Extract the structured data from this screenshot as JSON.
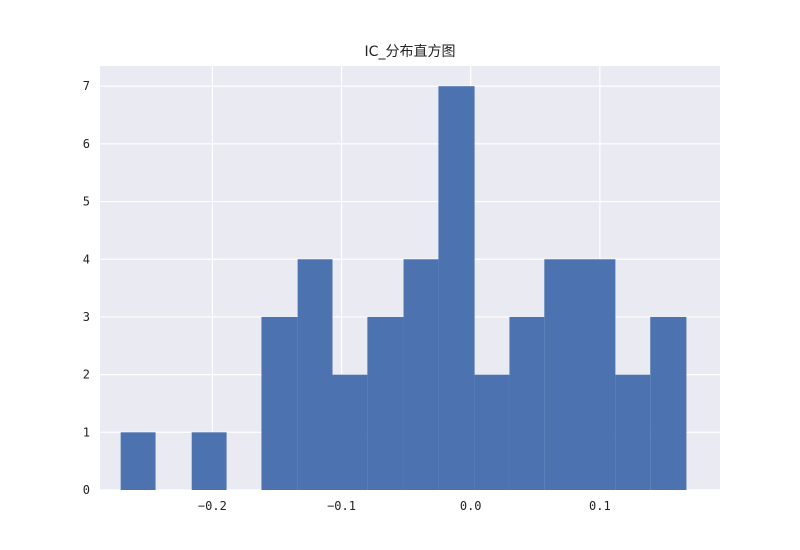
{
  "chart_data": {
    "type": "bar",
    "title": "IC_分布直方图",
    "xlabel": "",
    "ylabel": "",
    "bins": [
      {
        "x0": -0.271,
        "x1": -0.244,
        "count": 1
      },
      {
        "x0": -0.244,
        "x1": -0.216,
        "count": 0
      },
      {
        "x0": -0.216,
        "x1": -0.189,
        "count": 1
      },
      {
        "x0": -0.189,
        "x1": -0.162,
        "count": 0
      },
      {
        "x0": -0.162,
        "x1": -0.134,
        "count": 3
      },
      {
        "x0": -0.134,
        "x1": -0.107,
        "count": 4
      },
      {
        "x0": -0.107,
        "x1": -0.08,
        "count": 2
      },
      {
        "x0": -0.08,
        "x1": -0.052,
        "count": 3
      },
      {
        "x0": -0.052,
        "x1": -0.025,
        "count": 4
      },
      {
        "x0": -0.025,
        "x1": 0.003,
        "count": 7
      },
      {
        "x0": 0.003,
        "x1": 0.03,
        "count": 2
      },
      {
        "x0": 0.03,
        "x1": 0.057,
        "count": 3
      },
      {
        "x0": 0.057,
        "x1": 0.085,
        "count": 4
      },
      {
        "x0": 0.085,
        "x1": 0.112,
        "count": 4
      },
      {
        "x0": 0.112,
        "x1": 0.139,
        "count": 2
      },
      {
        "x0": 0.139,
        "x1": 0.167,
        "count": 3
      }
    ],
    "xlim": [
      -0.287,
      0.193
    ],
    "ylim": [
      0,
      7.35
    ],
    "xticks": [
      {
        "value": -0.2,
        "label": "−0.2"
      },
      {
        "value": -0.1,
        "label": "−0.1"
      },
      {
        "value": 0.0,
        "label": "0.0"
      },
      {
        "value": 0.1,
        "label": "0.1"
      }
    ],
    "yticks": [
      {
        "value": 0,
        "label": "0"
      },
      {
        "value": 1,
        "label": "1"
      },
      {
        "value": 2,
        "label": "2"
      },
      {
        "value": 3,
        "label": "3"
      },
      {
        "value": 4,
        "label": "4"
      },
      {
        "value": 5,
        "label": "5"
      },
      {
        "value": 6,
        "label": "6"
      },
      {
        "value": 7,
        "label": "7"
      }
    ],
    "grid": true,
    "colors": {
      "bar": "#4c72b0",
      "background": "#eaeaf2",
      "grid": "#ffffff"
    }
  }
}
